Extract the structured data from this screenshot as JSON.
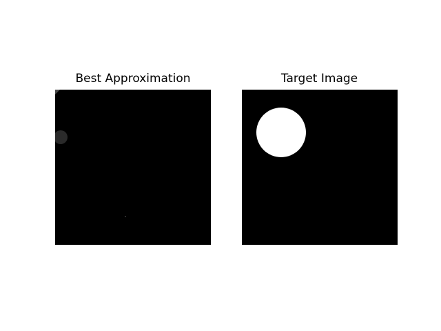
{
  "figure": {
    "left_panel": {
      "title": "Best Approximation",
      "image_background": "#000000",
      "mark_colors": [
        "#2a2a2a",
        "#4a4a4a",
        "#3a3a3a"
      ]
    },
    "right_panel": {
      "title": "Target Image",
      "image_background": "#000000",
      "circle_color": "#ffffff"
    }
  }
}
